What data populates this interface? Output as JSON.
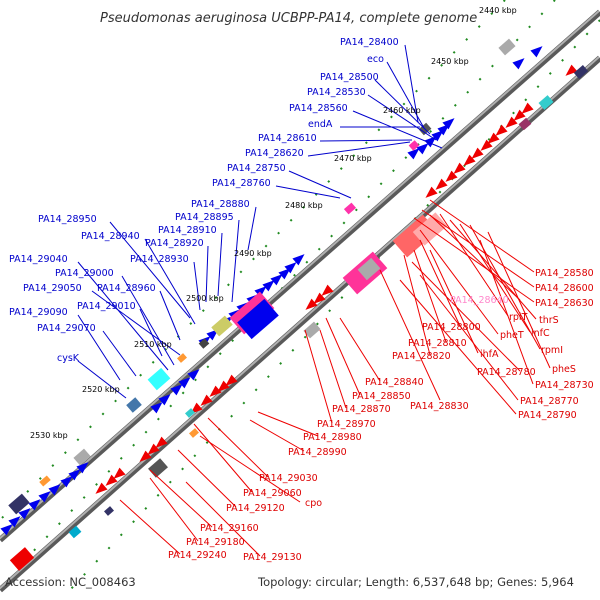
{
  "title": "Pseudomonas aeruginosa UCBPP-PA14, complete genome",
  "footer": {
    "accession": "Accession: NC_008463",
    "topology": "Topology: circular; Length: 6,537,648 bp; Genes: 5,964"
  },
  "colors": {
    "forward_label": "#0000cc",
    "reverse_label": "#dd0000",
    "pink_label": "#ff88cc",
    "backbone": "#888888",
    "tick_dots": "#228b22",
    "forward_cds": "#0000ee",
    "reverse_cds": "#ee0000"
  },
  "scale_labels": [
    "2440 kbp",
    "2450 kbp",
    "2460 kbp",
    "2470 kbp",
    "2480 kbp",
    "2490 kbp",
    "2500 kbp",
    "2510 kbp",
    "2520 kbp",
    "2530 kbp"
  ],
  "forward_labels": [
    "PA14_28400",
    "eco",
    "PA14_28500",
    "PA14_28530",
    "PA14_28560",
    "endA",
    "PA14_28610",
    "PA14_28620",
    "PA14_28750",
    "PA14_28760",
    "PA14_28880",
    "PA14_28895",
    "PA14_28950",
    "PA14_28910",
    "PA14_28940",
    "PA14_28920",
    "PA14_28930",
    "PA14_29040",
    "PA14_29000",
    "PA14_28960",
    "PA14_29050",
    "PA14_29010",
    "PA14_29090",
    "PA14_29070",
    "cysK"
  ],
  "reverse_labels": [
    "PA14_28580",
    "PA14_28600",
    "PA14_28630",
    "PA14_28640",
    "rplT",
    "thrS",
    "pheT",
    "infC",
    "PA14_28800",
    "PA14_28810",
    "PA14_28820",
    "rpmI",
    "ihfA",
    "pheS",
    "PA14_28780",
    "PA14_28730",
    "PA14_28840",
    "PA14_28770",
    "PA14_28790",
    "PA14_28850",
    "PA14_28830",
    "PA14_28870",
    "PA14_28970",
    "PA14_28980",
    "PA14_28990",
    "PA14_29030",
    "PA14_29060",
    "cpo",
    "PA14_29120",
    "PA14_29160",
    "PA14_29180",
    "PA14_29240",
    "PA14_29130"
  ]
}
